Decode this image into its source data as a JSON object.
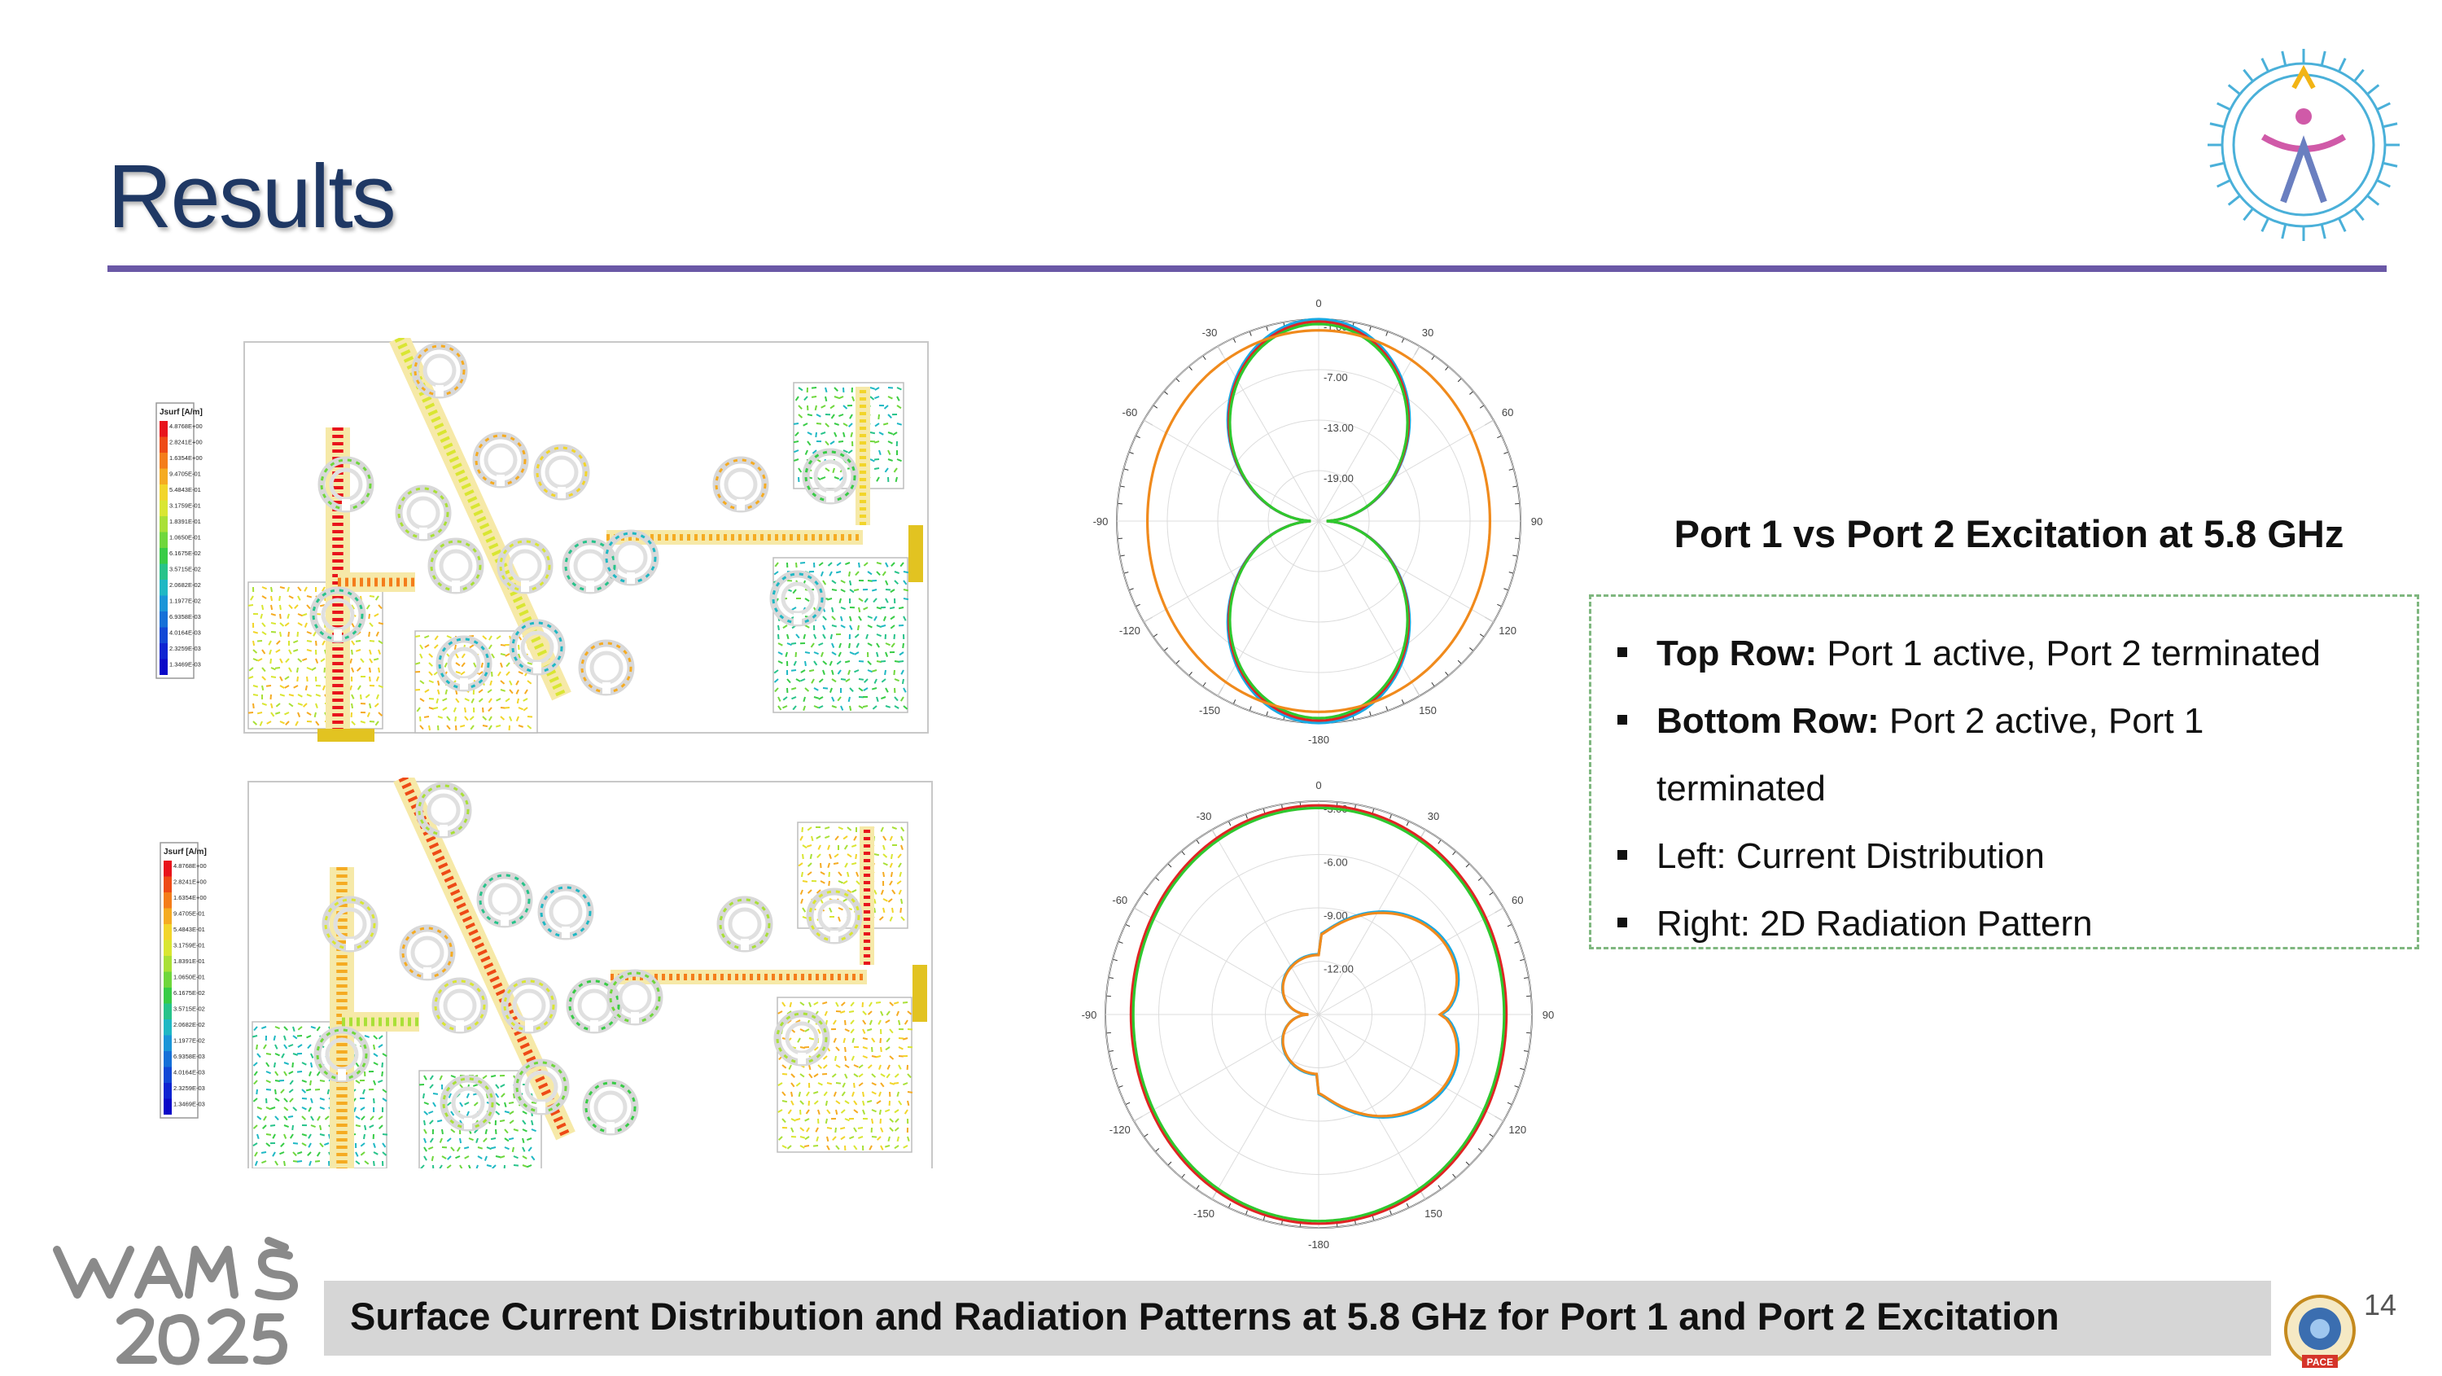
{
  "slide": {
    "title": "Results",
    "page_number": "14"
  },
  "right_panel": {
    "heading": "Port 1 vs Port 2 Excitation at 5.8 GHz",
    "bullets": [
      {
        "bold": "Top Row:",
        "text": " Port 1 active, Port 2 terminated"
      },
      {
        "bold": "Bottom Row:",
        "text": " Port 2 active, Port 1"
      },
      {
        "bold": "",
        "text": "terminated",
        "continuation": true
      },
      {
        "bold": "",
        "text": "Left: Current Distribution"
      },
      {
        "bold": "",
        "text": "Right: 2D Radiation Pattern"
      }
    ]
  },
  "caption": "Surface Current Distribution and Radiation Patterns at 5.8 GHz for Port 1 and Port 2 Excitation",
  "legend": {
    "title": "Jsurf [A/m]",
    "values": [
      "4.8768E+00",
      "2.8241E+00",
      "1.6354E+00",
      "9.4705E-01",
      "5.4843E-01",
      "3.1759E-01",
      "1.8391E-01",
      "1.0650E-01",
      "6.1675E-02",
      "3.5715E-02",
      "2.0682E-02",
      "1.1977E-02",
      "6.9358E-03",
      "4.0164E-03",
      "2.3259E-03",
      "1.3469E-03"
    ],
    "colors": [
      "#e8141c",
      "#ee4a16",
      "#f47d1b",
      "#f5ab22",
      "#f2d52a",
      "#d9e632",
      "#a9e037",
      "#6fd73c",
      "#38cc46",
      "#27c38a",
      "#1fb8c4",
      "#1a95d8",
      "#1570d8",
      "#1248d6",
      "#0e24d2",
      "#0a08c8"
    ]
  },
  "chart_data": [
    {
      "type": "polar",
      "angle_ticks": [
        "0",
        "30",
        "60",
        "90",
        "120",
        "150",
        "-180",
        "-150",
        "-120",
        "-90",
        "-60",
        "-30"
      ],
      "radial_ticks": [
        "-1.00",
        "-7.00",
        "-13.00",
        "-19.00"
      ],
      "rlim": [
        -25,
        -1
      ],
      "series": [
        {
          "color": "#19a9e3",
          "pattern": "figure-eight"
        },
        {
          "color": "#e02424",
          "pattern": "figure-eight"
        },
        {
          "color": "#2ec82e",
          "pattern": "figure-eight"
        },
        {
          "color": "#f08a1c",
          "pattern": "omni"
        }
      ]
    },
    {
      "type": "polar",
      "angle_ticks": [
        "0",
        "30",
        "60",
        "90",
        "120",
        "150",
        "-180",
        "-150",
        "-120",
        "-90",
        "-60",
        "-30"
      ],
      "radial_ticks": [
        "-3.00",
        "-6.00",
        "-9.00",
        "-12.00"
      ],
      "rlim": [
        -15,
        -3
      ],
      "series": [
        {
          "color": "#e02424",
          "pattern": "omni"
        },
        {
          "color": "#2ec82e",
          "pattern": "omni"
        },
        {
          "color": "#19a9e3",
          "pattern": "cardioid"
        },
        {
          "color": "#f08a1c",
          "pattern": "cardioid"
        }
      ]
    }
  ]
}
